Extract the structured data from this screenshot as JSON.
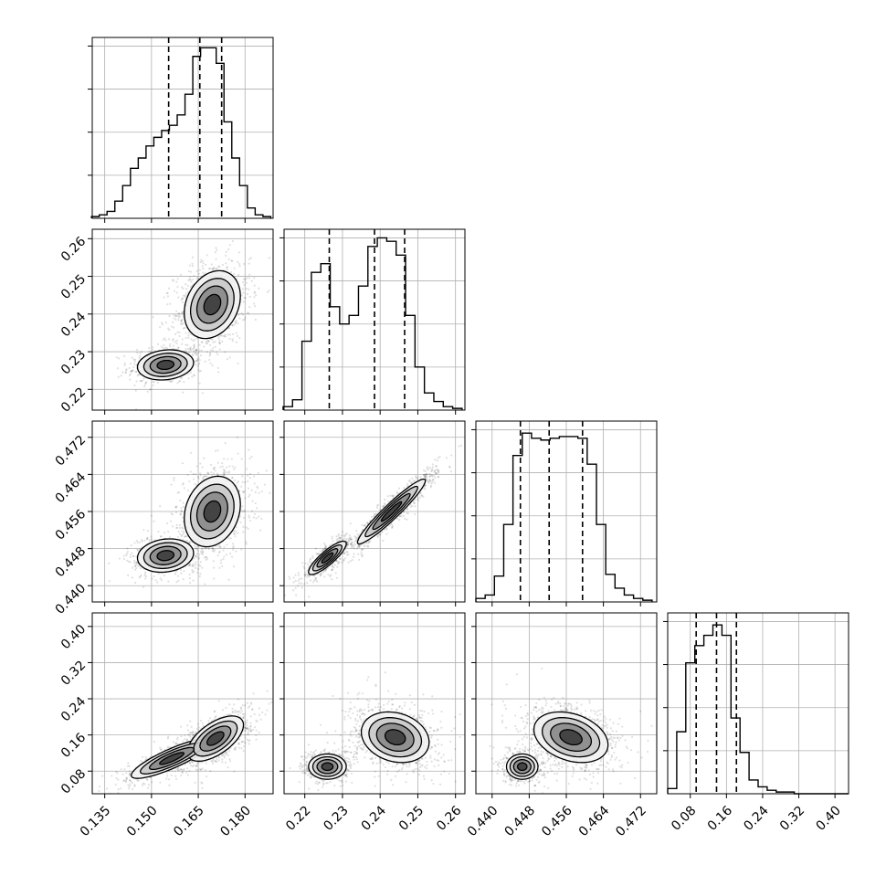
{
  "chart_data": {
    "type": "corner",
    "n_params": 4,
    "quantiles": [
      0.16,
      0.5,
      0.84
    ],
    "grid": true,
    "parameters": [
      {
        "range": [
          0.131,
          0.189
        ],
        "ticks": [
          0.135,
          0.15,
          0.165,
          0.18
        ],
        "tick_labels": [
          "0.135",
          "0.150",
          "0.165",
          "0.180"
        ]
      },
      {
        "range": [
          0.2145,
          0.2625
        ],
        "ticks": [
          0.22,
          0.23,
          0.24,
          0.25,
          0.26
        ],
        "tick_labels": [
          "0.22",
          "0.23",
          "0.24",
          "0.25",
          "0.26"
        ]
      },
      {
        "range": [
          0.4365,
          0.4755
        ],
        "ticks": [
          0.44,
          0.448,
          0.456,
          0.464,
          0.472
        ],
        "tick_labels": [
          "0.440",
          "0.448",
          "0.456",
          "0.464",
          "0.472"
        ]
      },
      {
        "range": [
          0.03,
          0.43
        ],
        "ticks": [
          0.08,
          0.16,
          0.24,
          0.32,
          0.4
        ],
        "tick_labels": [
          "0.08",
          "0.16",
          "0.24",
          "0.32",
          "0.40"
        ]
      }
    ],
    "marginals": [
      {
        "x": [
          0.132,
          0.1345,
          0.137,
          0.1395,
          0.142,
          0.1445,
          0.147,
          0.1495,
          0.152,
          0.1545,
          0.157,
          0.1595,
          0.162,
          0.1645,
          0.167,
          0.1695,
          0.172,
          0.1745,
          0.177,
          0.1795,
          0.182,
          0.1845,
          0.187
        ],
        "y": [
          0.01,
          0.02,
          0.04,
          0.1,
          0.19,
          0.29,
          0.35,
          0.42,
          0.47,
          0.51,
          0.54,
          0.6,
          0.72,
          0.94,
          0.99,
          0.99,
          0.9,
          0.56,
          0.35,
          0.19,
          0.06,
          0.02,
          0.01
        ],
        "quantile_values": [
          0.1555,
          0.1655,
          0.1725
        ]
      },
      {
        "x": [
          0.2155,
          0.218,
          0.2205,
          0.223,
          0.2255,
          0.228,
          0.2305,
          0.233,
          0.2355,
          0.238,
          0.2405,
          0.243,
          0.2455,
          0.248,
          0.2505,
          0.253,
          0.2555,
          0.258,
          0.2605
        ],
        "y": [
          0.02,
          0.06,
          0.4,
          0.8,
          0.85,
          0.6,
          0.5,
          0.55,
          0.72,
          0.95,
          1.0,
          0.98,
          0.9,
          0.55,
          0.25,
          0.1,
          0.05,
          0.02,
          0.01
        ],
        "quantile_values": [
          0.2265,
          0.2385,
          0.2465
        ]
      },
      {
        "x": [
          0.4375,
          0.4395,
          0.4415,
          0.4435,
          0.4455,
          0.4475,
          0.4495,
          0.4515,
          0.4535,
          0.4555,
          0.4575,
          0.4595,
          0.4615,
          0.4635,
          0.4655,
          0.4675,
          0.4695,
          0.4715,
          0.4735
        ],
        "y": [
          0.02,
          0.04,
          0.15,
          0.45,
          0.85,
          0.98,
          0.95,
          0.94,
          0.95,
          0.96,
          0.96,
          0.95,
          0.8,
          0.45,
          0.16,
          0.08,
          0.04,
          0.02,
          0.01
        ],
        "quantile_values": [
          0.4461,
          0.4523,
          0.4595
        ]
      },
      {
        "x": [
          0.04,
          0.06,
          0.08,
          0.1,
          0.12,
          0.14,
          0.16,
          0.18,
          0.2,
          0.22,
          0.24,
          0.26,
          0.28,
          0.3,
          0.32,
          0.34,
          0.36,
          0.38,
          0.4,
          0.42
        ],
        "y": [
          0.03,
          0.36,
          0.76,
          0.86,
          0.92,
          0.98,
          0.92,
          0.44,
          0.24,
          0.08,
          0.04,
          0.02,
          0.01,
          0.01,
          0.0,
          0.0,
          0.0,
          0.0,
          0.0,
          0.0
        ],
        "quantile_values": [
          0.093,
          0.138,
          0.182
        ]
      }
    ],
    "joint": [
      {
        "row": 1,
        "col": 0,
        "components": [
          {
            "mx": 0.1545,
            "my": 0.2265,
            "sx": 0.0045,
            "sy": 0.002,
            "rho": 0.15,
            "w": 0.35
          },
          {
            "mx": 0.1695,
            "my": 0.2425,
            "sx": 0.0045,
            "sy": 0.0045,
            "rho": 0.25,
            "w": 0.65
          }
        ]
      },
      {
        "row": 2,
        "col": 0,
        "components": [
          {
            "mx": 0.1545,
            "my": 0.4465,
            "sx": 0.0045,
            "sy": 0.0018,
            "rho": 0.15,
            "w": 0.35
          },
          {
            "mx": 0.1695,
            "my": 0.456,
            "sx": 0.0045,
            "sy": 0.0038,
            "rho": 0.2,
            "w": 0.65
          }
        ]
      },
      {
        "row": 2,
        "col": 1,
        "components": [
          {
            "mx": 0.226,
            "my": 0.446,
            "sx": 0.0025,
            "sy": 0.0018,
            "rho": 0.85,
            "w": 0.35
          },
          {
            "mx": 0.243,
            "my": 0.456,
            "sx": 0.0045,
            "sy": 0.0035,
            "rho": 0.95,
            "w": 0.65
          }
        ]
      },
      {
        "row": 3,
        "col": 0,
        "components": [
          {
            "mx": 0.1565,
            "my": 0.108,
            "sx": 0.0065,
            "sy": 0.022,
            "rho": 0.85,
            "w": 0.4
          },
          {
            "mx": 0.1705,
            "my": 0.152,
            "sx": 0.0045,
            "sy": 0.025,
            "rho": 0.6,
            "w": 0.6
          }
        ]
      },
      {
        "row": 3,
        "col": 1,
        "components": [
          {
            "mx": 0.226,
            "my": 0.09,
            "sx": 0.0025,
            "sy": 0.014,
            "rho": 0.0,
            "w": 0.35
          },
          {
            "mx": 0.244,
            "my": 0.155,
            "sx": 0.0045,
            "sy": 0.028,
            "rho": -0.2,
            "w": 0.65
          }
        ]
      },
      {
        "row": 3,
        "col": 2,
        "components": [
          {
            "mx": 0.4465,
            "my": 0.09,
            "sx": 0.0017,
            "sy": 0.014,
            "rho": 0.0,
            "w": 0.35
          },
          {
            "mx": 0.457,
            "my": 0.155,
            "sx": 0.004,
            "sy": 0.028,
            "rho": -0.3,
            "w": 0.65
          }
        ]
      }
    ]
  }
}
